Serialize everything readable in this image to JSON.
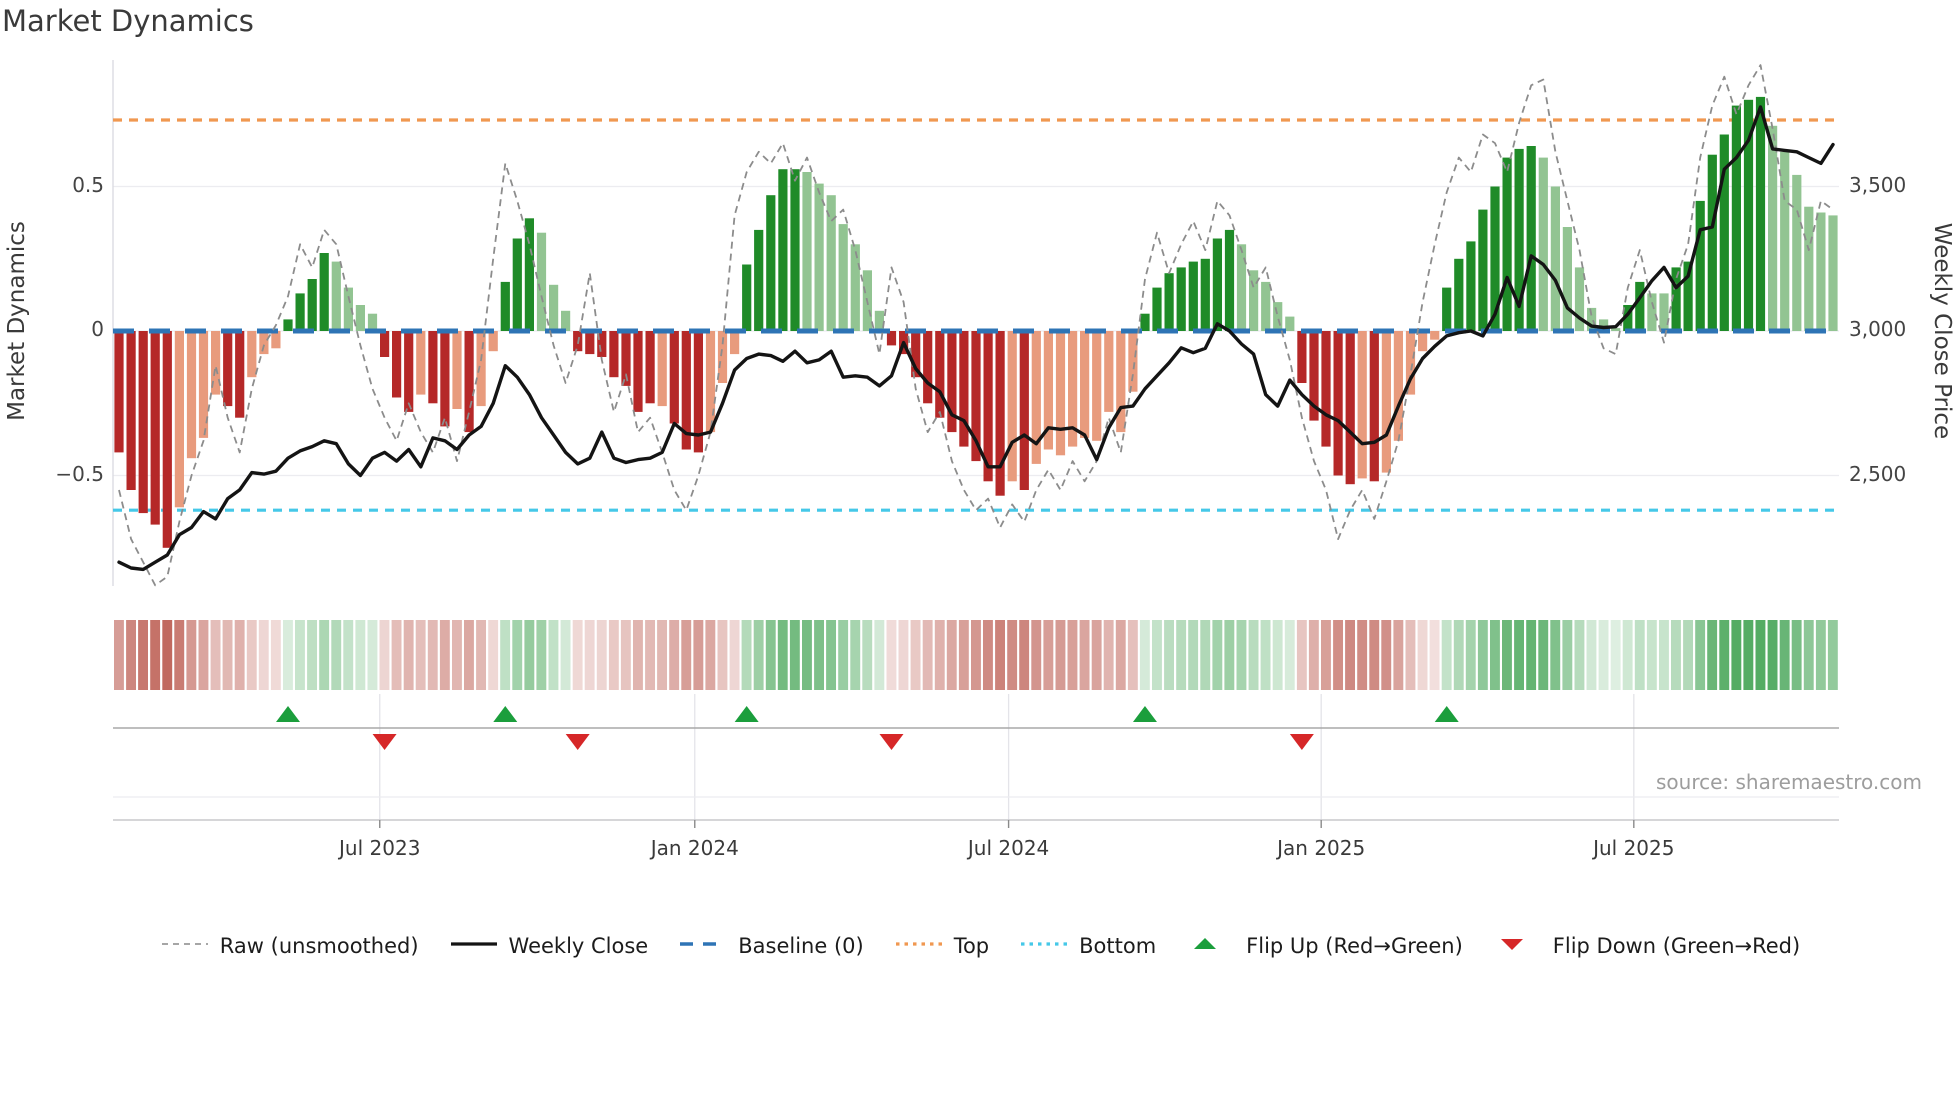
{
  "title": "Market Dynamics",
  "source": "source: sharemaestro.com",
  "axes": {
    "ylabel_left": "Market Dynamics",
    "ylabel_right": "Weekly Close Price",
    "yticks_left": [
      {
        "value": 0.5,
        "label": "0.5"
      },
      {
        "value": 0.0,
        "label": "0"
      },
      {
        "value": -0.5,
        "label": "−0.5"
      }
    ],
    "yticks_right": [
      {
        "value": 0.5,
        "label": "3,500"
      },
      {
        "value": 0.0,
        "label": "3,000"
      },
      {
        "value": -0.5,
        "label": "2,500"
      }
    ],
    "xticks": [
      {
        "week": 21.6,
        "label": "Jul 2023"
      },
      {
        "week": 47.7,
        "label": "Jan 2024"
      },
      {
        "week": 73.7,
        "label": "Jul 2024"
      },
      {
        "week": 99.6,
        "label": "Jan 2025"
      },
      {
        "week": 125.5,
        "label": "Jul 2025"
      }
    ]
  },
  "colors": {
    "bar_dark_red": "#b52828",
    "bar_light_red": "#e89b7d",
    "bar_dark_green": "#1f8b28",
    "bar_light_green": "#92c492",
    "baseline_blue": "#2e74b5",
    "top_orange": "#f09850",
    "bottom_cyan": "#45c8e8",
    "raw_gray": "#8c8c8c",
    "close_black": "#141414",
    "flip_up_green": "#1b9e3c",
    "flip_down_red": "#d62728",
    "grid": "#ececf0",
    "spine": "#d9d9e0",
    "marker_axis": "#a8a8a8",
    "bottom_axis": "#c8c8cc",
    "heat_red_strong": "#c1695f",
    "heat_green_strong": "#55ac64"
  },
  "legend": {
    "items": [
      {
        "key": "raw",
        "swatch": "dash-gray",
        "label": "Raw (unsmoothed)"
      },
      {
        "key": "weekly-close",
        "swatch": "solid-black",
        "label": "Weekly Close"
      },
      {
        "key": "baseline",
        "swatch": "dash-blue",
        "label": "Baseline (0)"
      },
      {
        "key": "top",
        "swatch": "dot-orange",
        "label": "Top"
      },
      {
        "key": "bottom",
        "swatch": "dot-cyan",
        "label": "Bottom"
      },
      {
        "key": "flip-up",
        "swatch": "tri-up",
        "label": "Flip Up (Red→Green)"
      },
      {
        "key": "flip-down",
        "swatch": "tri-down",
        "label": "Flip Down (Green→Red)"
      }
    ]
  },
  "chart_data": {
    "type": "bar",
    "description": "Weekly momentum oscillator bars (left axis) with weekly close price line (right axis), raw unsmoothed oscillator, reference lines, heatmap strip of bar values and trend-flip markers.",
    "x_unit": "week",
    "weeks_total": 143,
    "ylim_left": [
      -0.9,
      0.95
    ],
    "baseline": 0,
    "top_line": 0.73,
    "bottom_line": -0.62,
    "left_to_right_axis": "price = 3000 + 1000 * momentum",
    "series": [
      {
        "name": "Momentum (bars)",
        "axis": "left",
        "values": [
          -0.42,
          -0.55,
          -0.63,
          -0.67,
          -0.75,
          -0.61,
          -0.44,
          -0.37,
          -0.22,
          -0.26,
          -0.3,
          -0.16,
          -0.08,
          -0.06,
          0.04,
          0.13,
          0.18,
          0.27,
          0.24,
          0.15,
          0.09,
          0.06,
          -0.09,
          -0.23,
          -0.28,
          -0.22,
          -0.25,
          -0.33,
          -0.27,
          -0.35,
          -0.26,
          -0.07,
          0.17,
          0.32,
          0.39,
          0.34,
          0.16,
          0.07,
          -0.07,
          -0.08,
          -0.09,
          -0.16,
          -0.19,
          -0.28,
          -0.25,
          -0.26,
          -0.32,
          -0.41,
          -0.42,
          -0.35,
          -0.18,
          -0.08,
          0.23,
          0.35,
          0.47,
          0.56,
          0.56,
          0.55,
          0.51,
          0.47,
          0.37,
          0.3,
          0.21,
          0.07,
          -0.05,
          -0.08,
          -0.16,
          -0.25,
          -0.3,
          -0.35,
          -0.4,
          -0.45,
          -0.52,
          -0.57,
          -0.52,
          -0.55,
          -0.46,
          -0.41,
          -0.43,
          -0.4,
          -0.37,
          -0.38,
          -0.28,
          -0.35,
          -0.21,
          0.06,
          0.15,
          0.2,
          0.22,
          0.24,
          0.25,
          0.32,
          0.35,
          0.3,
          0.21,
          0.17,
          0.1,
          0.05,
          -0.18,
          -0.31,
          -0.4,
          -0.5,
          -0.53,
          -0.51,
          -0.52,
          -0.49,
          -0.38,
          -0.22,
          -0.07,
          -0.03,
          0.15,
          0.25,
          0.31,
          0.42,
          0.5,
          0.6,
          0.63,
          0.64,
          0.6,
          0.5,
          0.36,
          0.22,
          0.08,
          0.04,
          0.01,
          0.09,
          0.17,
          0.13,
          0.13,
          0.22,
          0.24,
          0.45,
          0.61,
          0.68,
          0.78,
          0.8,
          0.81,
          0.71,
          0.62,
          0.54,
          0.43,
          0.41,
          0.4
        ]
      },
      {
        "name": "Weekly Close",
        "axis": "right",
        "values": [
          2200,
          2180,
          2175,
          2200,
          2225,
          2295,
          2320,
          2375,
          2350,
          2420,
          2450,
          2510,
          2505,
          2515,
          2560,
          2585,
          2600,
          2620,
          2610,
          2540,
          2500,
          2560,
          2580,
          2550,
          2590,
          2530,
          2630,
          2620,
          2590,
          2640,
          2670,
          2750,
          2880,
          2840,
          2780,
          2700,
          2640,
          2580,
          2540,
          2560,
          2650,
          2560,
          2545,
          2555,
          2560,
          2580,
          2680,
          2645,
          2640,
          2650,
          2750,
          2865,
          2905,
          2920,
          2915,
          2895,
          2930,
          2890,
          2900,
          2930,
          2840,
          2845,
          2840,
          2810,
          2845,
          2960,
          2870,
          2820,
          2790,
          2710,
          2690,
          2620,
          2530,
          2530,
          2615,
          2640,
          2610,
          2665,
          2660,
          2665,
          2640,
          2555,
          2665,
          2735,
          2740,
          2800,
          2845,
          2890,
          2942,
          2925,
          2940,
          3025,
          3000,
          2955,
          2920,
          2780,
          2740,
          2830,
          2780,
          2740,
          2710,
          2690,
          2650,
          2610,
          2615,
          2640,
          2740,
          2835,
          2905,
          2947,
          2983,
          2994,
          3000,
          2983,
          3058,
          3185,
          3085,
          3260,
          3230,
          3175,
          3080,
          3045,
          3017,
          3012,
          3015,
          3058,
          3115,
          3174,
          3220,
          3150,
          3190,
          3350,
          3360,
          3560,
          3600,
          3660,
          3775,
          3630,
          3625,
          3620,
          3600,
          3580,
          3645
        ]
      },
      {
        "name": "Raw (unsmoothed)",
        "axis": "left",
        "values": [
          -0.55,
          -0.72,
          -0.8,
          -0.88,
          -0.85,
          -0.66,
          -0.5,
          -0.38,
          -0.12,
          -0.3,
          -0.42,
          -0.2,
          -0.05,
          0.02,
          0.12,
          0.3,
          0.22,
          0.35,
          0.3,
          0.12,
          -0.05,
          -0.2,
          -0.3,
          -0.38,
          -0.25,
          -0.35,
          -0.42,
          -0.3,
          -0.45,
          -0.28,
          -0.1,
          0.25,
          0.58,
          0.45,
          0.3,
          0.12,
          -0.05,
          -0.18,
          -0.05,
          0.2,
          -0.1,
          -0.28,
          -0.15,
          -0.35,
          -0.3,
          -0.42,
          -0.55,
          -0.62,
          -0.5,
          -0.35,
          -0.05,
          0.4,
          0.55,
          0.62,
          0.58,
          0.65,
          0.52,
          0.6,
          0.48,
          0.38,
          0.42,
          0.28,
          0.1,
          -0.08,
          0.22,
          0.1,
          -0.2,
          -0.35,
          -0.28,
          -0.45,
          -0.55,
          -0.62,
          -0.58,
          -0.68,
          -0.6,
          -0.66,
          -0.55,
          -0.48,
          -0.55,
          -0.45,
          -0.52,
          -0.45,
          -0.3,
          -0.42,
          -0.15,
          0.18,
          0.34,
          0.2,
          0.3,
          0.38,
          0.28,
          0.45,
          0.4,
          0.28,
          0.15,
          0.22,
          0.05,
          -0.1,
          -0.3,
          -0.45,
          -0.55,
          -0.72,
          -0.62,
          -0.55,
          -0.65,
          -0.52,
          -0.38,
          -0.15,
          0.1,
          0.3,
          0.48,
          0.6,
          0.55,
          0.68,
          0.65,
          0.55,
          0.72,
          0.85,
          0.87,
          0.62,
          0.45,
          0.28,
          0.05,
          -0.06,
          -0.08,
          0.15,
          0.28,
          0.1,
          -0.04,
          0.18,
          0.3,
          0.6,
          0.78,
          0.88,
          0.75,
          0.85,
          0.92,
          0.7,
          0.45,
          0.42,
          0.28,
          0.45,
          0.42
        ]
      }
    ],
    "shade_overrides": {
      "44": "dark",
      "45": "light",
      "78": "light",
      "81": "light",
      "83": "light",
      "128": "light"
    },
    "flip_up_weeks": [
      14,
      32,
      52,
      85,
      110
    ],
    "flip_down_weeks": [
      22,
      38,
      64,
      98
    ],
    "heatmap": "same values as Momentum (bars), red-white-green scale"
  }
}
